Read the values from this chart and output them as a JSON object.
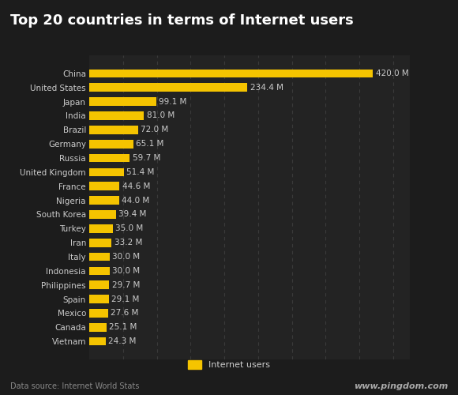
{
  "title": "Top 20 countries in terms of Internet users",
  "countries": [
    "China",
    "United States",
    "Japan",
    "India",
    "Brazil",
    "Germany",
    "Russia",
    "United Kingdom",
    "France",
    "Nigeria",
    "South Korea",
    "Turkey",
    "Iran",
    "Italy",
    "Indonesia",
    "Philippines",
    "Spain",
    "Mexico",
    "Canada",
    "Vietnam"
  ],
  "values": [
    420.0,
    234.4,
    99.1,
    81.0,
    72.0,
    65.1,
    59.7,
    51.4,
    44.6,
    44.0,
    39.4,
    35.0,
    33.2,
    30.0,
    30.0,
    29.7,
    29.1,
    27.6,
    25.1,
    24.3
  ],
  "bar_color": "#F5C400",
  "background_color": "#1c1c1c",
  "title_bg_color": "#2a2a2a",
  "plot_bg_color": "#232323",
  "title_color": "#ffffff",
  "label_color": "#cccccc",
  "value_color": "#cccccc",
  "grid_color": "#3a3a3a",
  "legend_label": "Internet users",
  "data_source": "Data source: Internet World Stats",
  "website": "www.pingdom.com",
  "title_fontsize": 13,
  "label_fontsize": 7.5,
  "value_fontsize": 7.5,
  "footer_fontsize": 7,
  "website_fontsize": 8
}
